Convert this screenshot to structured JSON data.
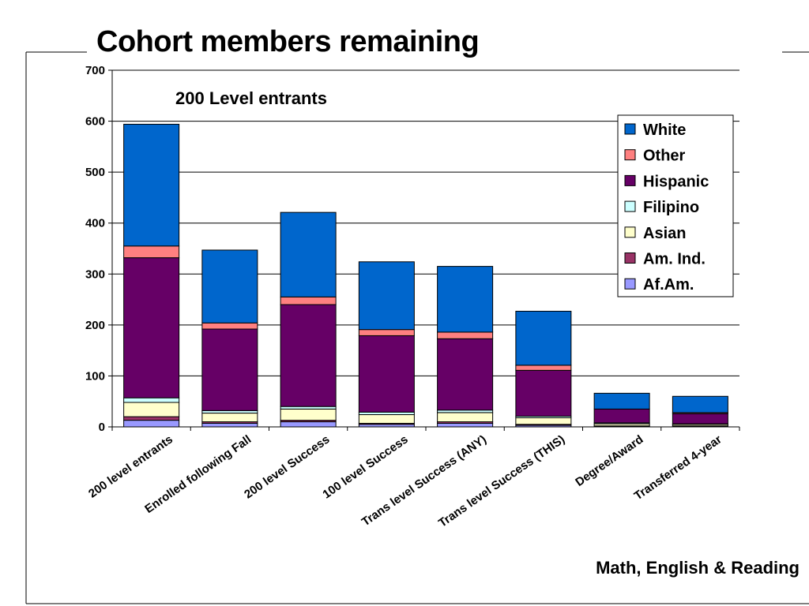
{
  "page": {
    "title": "Cohort members remaining",
    "footnote": "Math, English & Reading"
  },
  "chart_data": {
    "type": "bar",
    "stacked": true,
    "title": "200 Level entrants",
    "xlabel": "",
    "ylabel": "",
    "ylim": [
      0,
      700
    ],
    "yticks": [
      0,
      100,
      200,
      300,
      400,
      500,
      600,
      700
    ],
    "grid": true,
    "legend_position": "top-right",
    "categories": [
      "200 level entrants",
      "Enrolled following Fall",
      "200 level Success",
      "100 level Success",
      "Trans level Success (ANY)",
      "Trans level Success (THIS)",
      "Degree/Award",
      "Transferred 4-year"
    ],
    "series": [
      {
        "name": "Af.Am.",
        "color": "#9999ff",
        "values": [
          13,
          7,
          10,
          5,
          7,
          3,
          1,
          1
        ]
      },
      {
        "name": "Am. Ind.",
        "color": "#993366",
        "values": [
          7,
          3,
          3,
          2,
          3,
          2,
          1,
          1
        ]
      },
      {
        "name": "Asian",
        "color": "#ffffcc",
        "values": [
          28,
          17,
          22,
          17,
          18,
          13,
          4,
          3
        ]
      },
      {
        "name": "Filipino",
        "color": "#ccffff",
        "values": [
          9,
          5,
          5,
          5,
          5,
          3,
          2,
          1
        ]
      },
      {
        "name": "Hispanic",
        "color": "#660066",
        "values": [
          275,
          160,
          200,
          150,
          140,
          90,
          27,
          20
        ]
      },
      {
        "name": "Other",
        "color": "#ff8080",
        "values": [
          23,
          12,
          15,
          12,
          13,
          10,
          0,
          2
        ]
      },
      {
        "name": "White",
        "color": "#0066cc",
        "values": [
          239,
          143,
          166,
          133,
          129,
          106,
          31,
          32
        ]
      }
    ]
  }
}
